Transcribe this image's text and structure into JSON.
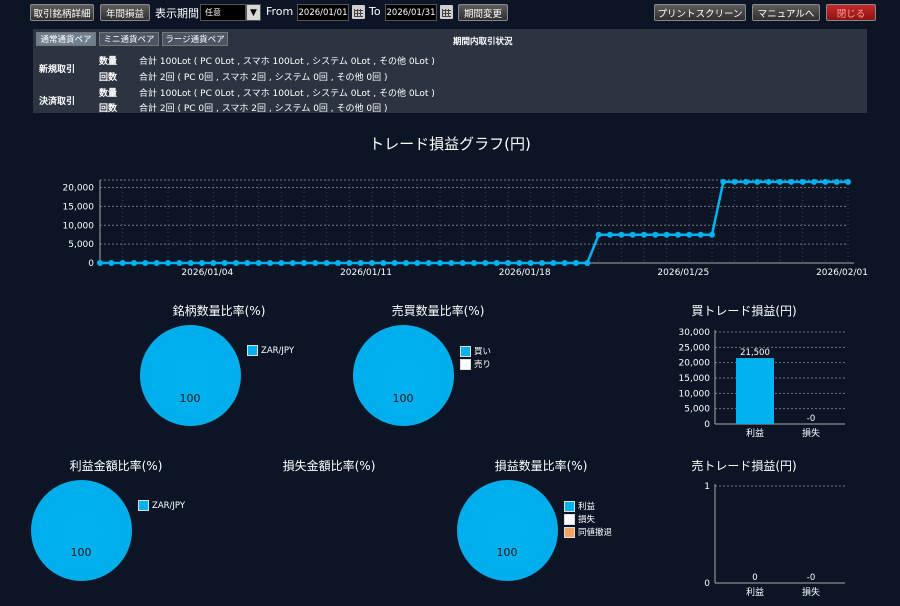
{
  "toolbar": {
    "btn_detail": "取引銘柄詳細",
    "btn_yearly": "年間損益",
    "period_label": "表示期間",
    "period_value": "任意",
    "from_label": "From",
    "from_date": "2026/01/01",
    "to_label": "To",
    "to_date": "2026/01/31",
    "btn_change": "期間変更",
    "btn_print": "プリントスクリーン",
    "btn_manual": "マニュアルへ",
    "btn_close": "閉じる"
  },
  "summary": {
    "tabs": [
      "通常通貨ペア",
      "ミニ通貨ペア",
      "ラージ通貨ペア"
    ],
    "active_tab": 0,
    "title": "期間内取引状況",
    "new_label": "新規取引",
    "close_label": "決済取引",
    "qty_label": "数量",
    "count_label": "回数",
    "new_qty": "合計 100Lot ( PC 0Lot , スマホ 100Lot , システム 0Lot , その他 0Lot )",
    "new_count": "合計 2回 ( PC 0回 , スマホ 2回 , システム 0回 , その他 0回 )",
    "close_qty": "合計 100Lot ( PC 0Lot , スマホ 100Lot , システム 0Lot , その他 0Lot )",
    "close_count": "合計 2回 ( PC 0回 , スマホ 2回 , システム 0回 , その他 0回 )"
  },
  "colors": {
    "accent": "#00b3f0",
    "background": "#0b1526",
    "panel": "#2c3441",
    "sell_legend": "#ffffff",
    "breakeven_legend": "#f4a460"
  },
  "charts": {
    "pnl_title": "トレード損益グラフ(円)",
    "symbol_ratio_title": "銘柄数量比率(%)",
    "buysell_ratio_title": "売買数量比率(%)",
    "buy_pnl_title": "買トレード損益(円)",
    "profit_ratio_title": "利益金額比率(%)",
    "loss_ratio_title": "損失金額比率(%)",
    "pnl_count_title": "損益数量比率(%)",
    "sell_pnl_title": "売トレード損益(円)"
  },
  "chart_data": [
    {
      "type": "line",
      "title": "トレード損益グラフ(円)",
      "x_start": "2025/12/30",
      "x_end": "2026/02/01",
      "x_ticks": [
        "2026/01/04",
        "2026/01/11",
        "2026/01/18",
        "2026/01/25",
        "2026/02/01"
      ],
      "y_ticks": [
        "0",
        "5,000",
        "10,000",
        "15,000",
        "20,000"
      ],
      "ylim": [
        0,
        22000
      ],
      "grid": true,
      "series": [
        {
          "x_days_from_start": [
            0,
            0.5,
            1,
            1.5,
            2,
            2.5,
            3,
            3.5,
            4,
            4.5,
            5,
            5.5,
            6,
            6.5,
            7,
            7.5,
            8,
            8.5,
            9,
            9.5,
            10,
            10.5,
            11,
            11.5,
            12,
            12.5,
            13,
            13.5,
            14,
            14.5,
            15,
            15.5,
            16,
            16.5,
            17,
            17.5,
            18,
            18.5,
            19,
            19.5,
            20,
            20.5,
            21,
            21.5,
            22,
            22.5,
            23,
            23.5,
            24,
            24.5,
            25,
            25.5,
            26,
            26.5,
            27,
            27.5,
            28,
            28.5,
            29,
            29.5,
            30,
            30.5,
            31,
            31.5,
            32,
            32.5,
            33
          ],
          "y": [
            0,
            0,
            0,
            0,
            0,
            0,
            0,
            0,
            0,
            0,
            0,
            0,
            0,
            0,
            0,
            0,
            0,
            0,
            0,
            0,
            0,
            0,
            0,
            0,
            0,
            0,
            0,
            0,
            0,
            0,
            0,
            0,
            0,
            0,
            0,
            0,
            0,
            0,
            0,
            0,
            0,
            0,
            0,
            0,
            7500,
            7500,
            7500,
            7500,
            7500,
            7500,
            7500,
            7500,
            7500,
            7500,
            7500,
            21500,
            21500,
            21500,
            21500,
            21500,
            21500,
            21500,
            21500,
            21500,
            21500,
            21500,
            21500
          ]
        }
      ]
    },
    {
      "type": "pie",
      "title": "銘柄数量比率(%)",
      "slices": [
        {
          "label": "ZAR/JPY",
          "value": 100
        }
      ],
      "center_label": "100"
    },
    {
      "type": "pie",
      "title": "売買数量比率(%)",
      "slices": [
        {
          "label": "買い",
          "value": 100
        },
        {
          "label": "売り",
          "value": 0
        }
      ],
      "center_label": "100"
    },
    {
      "type": "bar",
      "title": "買トレード損益(円)",
      "categories": [
        "利益",
        "損失"
      ],
      "values": [
        21500,
        0
      ],
      "value_labels": [
        "21,500",
        "-0"
      ],
      "y_ticks": [
        "0",
        "5,000",
        "10,000",
        "15,000",
        "20,000",
        "25,000",
        "30,000"
      ],
      "ylim": [
        0,
        30000
      ]
    },
    {
      "type": "pie",
      "title": "利益金額比率(%)",
      "slices": [
        {
          "label": "ZAR/JPY",
          "value": 100
        }
      ],
      "center_label": "100"
    },
    {
      "type": "pie",
      "title": "損失金額比率(%)",
      "slices": []
    },
    {
      "type": "pie",
      "title": "損益数量比率(%)",
      "slices": [
        {
          "label": "利益",
          "value": 100
        },
        {
          "label": "損失",
          "value": 0
        },
        {
          "label": "同値撤退",
          "value": 0
        }
      ],
      "center_label": "100"
    },
    {
      "type": "bar",
      "title": "売トレード損益(円)",
      "categories": [
        "利益",
        "損失"
      ],
      "values": [
        0,
        0
      ],
      "value_labels": [
        "0",
        "-0"
      ],
      "y_ticks": [
        "0",
        "1"
      ],
      "ylim": [
        0,
        1
      ]
    }
  ]
}
